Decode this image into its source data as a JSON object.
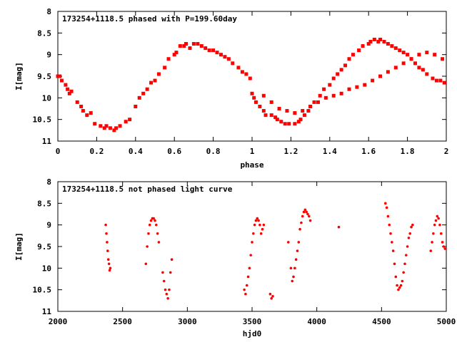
{
  "chart_data": [
    {
      "type": "scatter",
      "title": "173254+1118.5 phased with P=199.60day",
      "xlabel": "phase",
      "ylabel": "I[mag]",
      "xlim": [
        0,
        2
      ],
      "ylim": [
        11,
        8
      ],
      "y_reversed": true,
      "xticks": [
        "0",
        "0.2",
        "0.4",
        "0.6",
        "0.8",
        "1",
        "1.2",
        "1.4",
        "1.6",
        "1.8",
        "2"
      ],
      "yticks": [
        "8",
        "8.5",
        "9",
        "9.5",
        "10",
        "10.5",
        "11"
      ],
      "marker_color": "#ff0000",
      "series": [
        {
          "x": [
            0.0,
            0.01,
            0.02,
            0.04,
            0.05,
            0.06,
            0.07,
            0.1,
            0.12,
            0.13,
            0.15,
            0.17,
            0.19,
            0.22,
            0.24,
            0.25,
            0.27,
            0.29,
            0.3,
            0.32,
            0.35,
            0.37,
            0.4,
            0.42,
            0.44,
            0.46,
            0.48,
            0.5,
            0.52,
            0.55,
            0.57,
            0.6,
            0.61,
            0.63,
            0.65,
            0.66,
            0.68,
            0.7,
            0.72,
            0.74,
            0.76,
            0.78,
            0.8,
            0.82,
            0.84,
            0.86,
            0.88,
            0.9,
            0.93,
            0.95,
            0.97,
            0.99,
            1.0,
            1.01,
            1.02,
            1.04,
            1.06,
            1.07,
            1.1,
            1.12,
            1.13,
            1.15,
            1.17,
            1.19,
            1.22,
            1.24,
            1.25,
            1.27,
            1.29,
            1.3,
            1.32,
            1.35,
            1.37,
            1.4,
            1.42,
            1.44,
            1.46,
            1.48,
            1.5,
            1.52,
            1.55,
            1.57,
            1.6,
            1.61,
            1.63,
            1.65,
            1.66,
            1.68,
            1.7,
            1.72,
            1.74,
            1.76,
            1.78,
            1.8,
            1.82,
            1.84,
            1.86,
            1.88,
            1.9,
            1.93,
            1.95,
            1.97,
            1.99,
            1.06,
            1.1,
            1.14,
            1.18,
            1.22,
            1.26,
            1.3,
            1.34,
            1.38,
            1.42,
            1.46,
            1.5,
            1.54,
            1.58,
            1.62,
            1.66,
            1.7,
            1.74,
            1.78,
            1.82,
            1.86,
            1.9,
            1.94,
            1.98
          ],
          "y": [
            9.5,
            9.5,
            9.6,
            9.7,
            9.8,
            9.9,
            9.85,
            10.1,
            10.2,
            10.3,
            10.4,
            10.35,
            10.6,
            10.65,
            10.7,
            10.65,
            10.7,
            10.75,
            10.7,
            10.65,
            10.55,
            10.5,
            10.2,
            10.0,
            9.9,
            9.8,
            9.65,
            9.6,
            9.45,
            9.3,
            9.1,
            9.0,
            8.95,
            8.8,
            8.8,
            8.75,
            8.85,
            8.75,
            8.75,
            8.8,
            8.85,
            8.9,
            8.9,
            8.95,
            9.0,
            9.05,
            9.1,
            9.2,
            9.3,
            9.4,
            9.45,
            9.55,
            9.9,
            10.0,
            10.1,
            10.2,
            10.3,
            10.4,
            10.4,
            10.45,
            10.5,
            10.55,
            10.6,
            10.6,
            10.6,
            10.55,
            10.5,
            10.4,
            10.3,
            10.2,
            10.1,
            9.95,
            9.8,
            9.7,
            9.55,
            9.45,
            9.35,
            9.25,
            9.1,
            9.0,
            8.9,
            8.8,
            8.75,
            8.7,
            8.65,
            8.7,
            8.65,
            8.7,
            8.75,
            8.8,
            8.85,
            8.9,
            8.95,
            9.0,
            9.1,
            9.2,
            9.3,
            9.35,
            9.45,
            9.55,
            9.6,
            9.6,
            9.65,
            9.95,
            10.1,
            10.25,
            10.3,
            10.35,
            10.3,
            10.2,
            10.1,
            10.0,
            9.95,
            9.9,
            9.8,
            9.75,
            9.7,
            9.6,
            9.5,
            9.4,
            9.3,
            9.2,
            9.1,
            9.0,
            8.95,
            9.0,
            9.1
          ]
        }
      ]
    },
    {
      "type": "scatter",
      "title": "173254+1118.5 not phased light curve",
      "xlabel": "hjd0",
      "ylabel": "I[mag]",
      "xlim": [
        2000,
        5000
      ],
      "ylim": [
        11,
        8
      ],
      "y_reversed": true,
      "xticks": [
        "2000",
        "2500",
        "3000",
        "3500",
        "4000",
        "4500",
        "5000"
      ],
      "yticks": [
        "8",
        "8.5",
        "9",
        "9.5",
        "10",
        "10.5",
        "11"
      ],
      "marker_color": "#ff0000",
      "series": [
        {
          "x": [
            2370,
            2375,
            2380,
            2385,
            2390,
            2395,
            2400,
            2405,
            2680,
            2690,
            2700,
            2710,
            2720,
            2730,
            2740,
            2750,
            2760,
            2770,
            2780,
            2810,
            2820,
            2830,
            2840,
            2850,
            2860,
            2870,
            2880,
            3440,
            3450,
            3460,
            3470,
            3480,
            3490,
            3500,
            3510,
            3520,
            3530,
            3540,
            3550,
            3560,
            3570,
            3580,
            3590,
            3640,
            3650,
            3660,
            3780,
            3800,
            3810,
            3820,
            3830,
            3840,
            3850,
            3860,
            3870,
            3880,
            3890,
            3900,
            3910,
            3920,
            3930,
            3940,
            3950,
            4170,
            4530,
            4540,
            4550,
            4560,
            4570,
            4580,
            4590,
            4600,
            4610,
            4620,
            4630,
            4640,
            4650,
            4660,
            4670,
            4680,
            4690,
            4700,
            4710,
            4720,
            4730,
            4740,
            4880,
            4890,
            4900,
            4910,
            4920,
            4930,
            4940,
            4950,
            4960,
            4970,
            4980,
            4990
          ],
          "y": [
            9.0,
            9.2,
            9.4,
            9.6,
            9.8,
            9.9,
            10.05,
            10.0,
            9.9,
            9.5,
            9.2,
            9.0,
            8.9,
            8.85,
            8.85,
            8.9,
            9.0,
            9.2,
            9.4,
            10.1,
            10.3,
            10.5,
            10.6,
            10.7,
            10.5,
            10.1,
            9.8,
            10.5,
            10.6,
            10.4,
            10.2,
            10.0,
            9.7,
            9.4,
            9.2,
            9.0,
            8.9,
            8.85,
            8.9,
            9.0,
            9.2,
            9.1,
            9.0,
            10.6,
            10.7,
            10.65,
            9.4,
            10.0,
            10.3,
            10.2,
            10.0,
            9.8,
            9.6,
            9.4,
            9.1,
            8.95,
            8.8,
            8.7,
            8.65,
            8.7,
            8.75,
            8.8,
            8.9,
            9.05,
            8.5,
            8.6,
            8.8,
            9.0,
            9.2,
            9.4,
            9.6,
            9.9,
            10.2,
            10.4,
            10.5,
            10.45,
            10.4,
            10.3,
            10.1,
            9.9,
            9.7,
            9.5,
            9.3,
            9.2,
            9.05,
            9.0,
            9.6,
            9.4,
            9.2,
            9.0,
            8.9,
            8.8,
            8.85,
            9.0,
            9.2,
            9.4,
            9.5,
            9.55
          ]
        }
      ]
    }
  ]
}
